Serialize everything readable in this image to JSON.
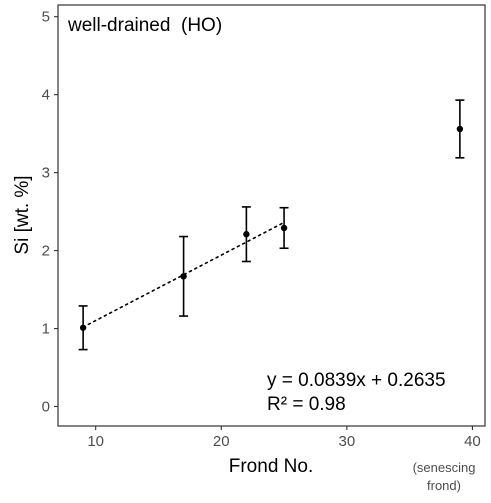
{
  "chart_data": {
    "type": "scatter",
    "title": "well-drained  (HO)",
    "xlabel": "Frond No.",
    "ylabel": "Si [wt. %]",
    "xlim": [
      7,
      41
    ],
    "ylim": [
      -0.25,
      5.15
    ],
    "xticks": [
      10,
      20,
      30,
      40
    ],
    "yticks": [
      0,
      1,
      2,
      3,
      4,
      5
    ],
    "grid": false,
    "points": [
      {
        "x": 9,
        "y": 1.01,
        "err_low": 0.73,
        "err_high": 1.29
      },
      {
        "x": 17,
        "y": 1.67,
        "err_low": 1.16,
        "err_high": 2.18
      },
      {
        "x": 22,
        "y": 2.21,
        "err_low": 1.86,
        "err_high": 2.56
      },
      {
        "x": 25,
        "y": 2.29,
        "err_low": 2.03,
        "err_high": 2.55
      },
      {
        "x": 39,
        "y": 3.56,
        "err_low": 3.19,
        "err_high": 3.93
      }
    ],
    "fit": {
      "slope": 0.0839,
      "intercept": 0.2635,
      "x_range": [
        9,
        25
      ],
      "style": "dotted"
    },
    "annotations": {
      "equation": "y = 0.0839x + 0.2635",
      "r2": "R² = 0.98",
      "note_line1": "(senescing",
      "note_line2": "frond)"
    },
    "colors": {
      "points": "#000000",
      "axis": "#333333",
      "tick_label": "#4d4d4d"
    }
  }
}
